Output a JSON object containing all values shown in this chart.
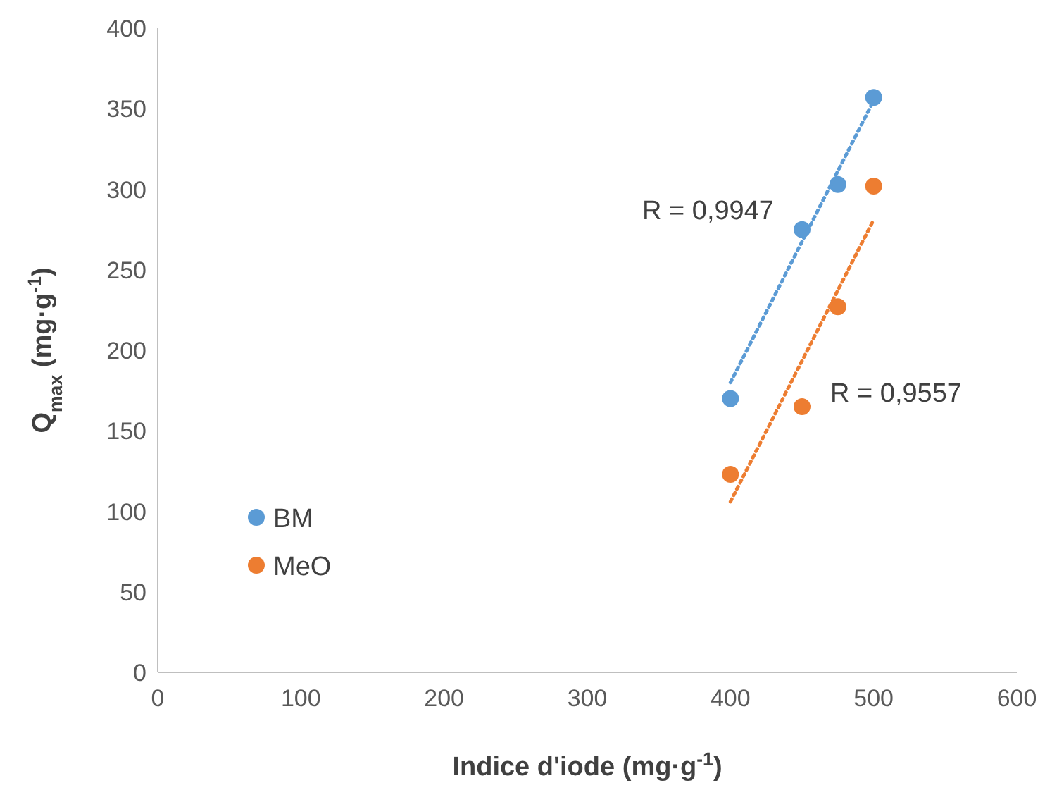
{
  "chart_data": {
    "type": "scatter",
    "xlabel": "Indice d'iode (mg·g$^{-1}$)",
    "ylabel": "Q$_{max}$ (mg·g$^{-1}$)",
    "xlim": [
      0,
      600
    ],
    "xticks": [
      0,
      100,
      200,
      300,
      400,
      500,
      600
    ],
    "ylim": [
      0,
      400
    ],
    "yticks": [
      0,
      50,
      100,
      150,
      200,
      250,
      300,
      350,
      400
    ],
    "grid": false,
    "legend": "bottom left",
    "marker": "circle",
    "series": [
      {
        "name": "BM",
        "color": "#5b9bd5",
        "x": [
          400,
          450,
          475,
          500
        ],
        "values": [
          170,
          275,
          303,
          357
        ]
      },
      {
        "name": "MeO",
        "color": "#ed7d31",
        "x": [
          400,
          450,
          475,
          500
        ],
        "values": [
          123,
          165,
          227,
          302
        ]
      },
      {
        "type": "line",
        "color": "#5b9bd5",
        "x": [
          400,
          500
        ],
        "values": [
          180,
          355
        ],
        "line_style": "dotted",
        "marker": "none"
      },
      {
        "type": "line",
        "color": "#ed7d31",
        "x": [
          400,
          500
        ],
        "values": [
          106,
          281
        ],
        "line_style": "dotted",
        "marker": "none"
      }
    ],
    "annotations": [
      "R = 0,9947",
      "R = 0,9557"
    ]
  }
}
